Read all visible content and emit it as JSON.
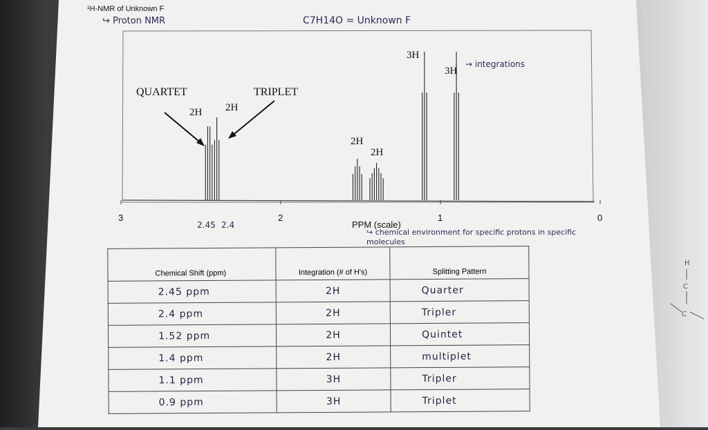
{
  "header": {
    "title": "¹H-NMR of Unknown F",
    "subtitle_note": "↪ Proton NMR",
    "formula_note": "C7H14O = Unknown F"
  },
  "annotations": {
    "integrations_note": "→ integrations",
    "ppm_note": "↪ chemical environment for specific protons in specific molecules",
    "quartet": "QUARTET",
    "triplet": "TRIPLET",
    "shift_note_a": "2.45",
    "shift_note_b": "2.4"
  },
  "chart_data": {
    "type": "line",
    "title": "",
    "xlabel": "PPM (scale)",
    "ylabel": "",
    "x_reversed": true,
    "xlim": [
      3,
      0
    ],
    "x_ticks": [
      "3",
      "2",
      "1",
      "0"
    ],
    "peaks": [
      {
        "ppm": 2.45,
        "integration": "2H",
        "multiplicity": "quartet"
      },
      {
        "ppm": 2.4,
        "integration": "2H",
        "multiplicity": "triplet"
      },
      {
        "ppm": 1.52,
        "integration": "2H",
        "multiplicity": "quintet"
      },
      {
        "ppm": 1.4,
        "integration": "2H",
        "multiplicity": "multiplet"
      },
      {
        "ppm": 1.1,
        "integration": "3H",
        "multiplicity": "triplet"
      },
      {
        "ppm": 0.9,
        "integration": "3H",
        "multiplicity": "triplet"
      }
    ]
  },
  "table": {
    "headers": [
      "Chemical Shift (ppm)",
      "Integration (# of H's)",
      "Splitting Pattern"
    ],
    "rows": [
      [
        "2.45 ppm",
        "2H",
        "Quarter"
      ],
      [
        "2.4 ppm",
        "2H",
        "Tripler"
      ],
      [
        "1.52 ppm",
        "2H",
        "Quintet"
      ],
      [
        "1.4 ppm",
        "2H",
        "multiplet"
      ],
      [
        "1.1 ppm",
        "3H",
        "Tripler"
      ],
      [
        "0.9 ppm",
        "3H",
        "Triplet"
      ]
    ]
  },
  "colors": {
    "paper": "#f1f1ef",
    "ink": "#1c1c3a",
    "print": "#111111"
  }
}
